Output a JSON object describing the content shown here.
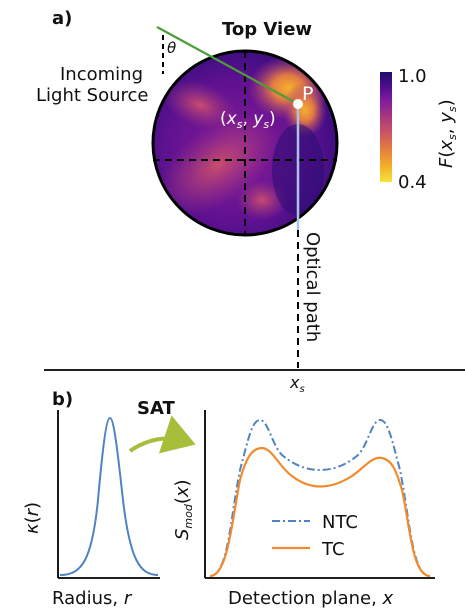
{
  "panel_a": {
    "label": "a)",
    "title": "Top View",
    "theta": "θ",
    "incoming_line1": "Incoming",
    "incoming_line2": "Light Source",
    "point_label": "P",
    "coord_label": "(xs, ys)",
    "optical_path": "Optical path",
    "xs_label": "xs",
    "colorbar": {
      "max_label": "1.0",
      "min_label": "0.4",
      "title": "F(xs, ys)",
      "colors": [
        "#1c0f6b",
        "#4b0c8a",
        "#7d1a9f",
        "#a6377e",
        "#cc5462",
        "#e57d3f",
        "#f4b02a",
        "#f4e33b"
      ]
    }
  },
  "panel_b": {
    "label": "b)",
    "arrow_label": "SAT",
    "left_ylabel": "κ(r)",
    "left_xlabel": "Radius, r",
    "right_ylabel": "Smod(x)",
    "right_xlabel": "Detection plane, x",
    "legend": {
      "ntc": "NTC",
      "tc": "TC"
    },
    "colors": {
      "ntc": "#4f83c3",
      "tc": "#f28a2e",
      "kappa": "#4f83c3",
      "arrow": "#a6be3a",
      "ray": "#4c9e38"
    }
  }
}
